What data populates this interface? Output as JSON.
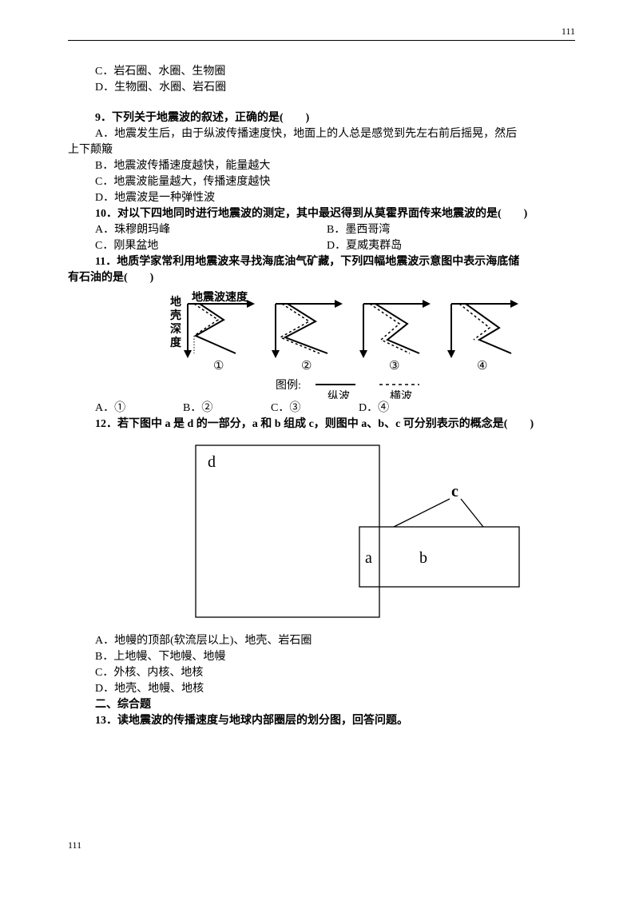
{
  "page_number_top": "111",
  "page_number_bottom": "111",
  "q8": {
    "optC": "C．岩石圈、水圈、生物圈",
    "optD": "D．生物圈、水圈、岩石圈"
  },
  "q9": {
    "stem": "9．下列关于地震波的叙述，正确的是(　　)",
    "optA_1": "A．地震发生后，由于纵波传播速度快，地面上的人总是感觉到先左右前后摇晃，然后",
    "optA_2": "上下颠簸",
    "optB": "B．地震波传播速度越快，能量越大",
    "optC": "C．地震波能量越大，传播速度越快",
    "optD": "D．地震波是一种弹性波"
  },
  "q10": {
    "stem": "10．对以下四地同时进行地震波的测定，其中最迟得到从莫霍界面传来地震波的是(　　)",
    "optA": "A．珠穆朗玛峰",
    "optB": "B．墨西哥湾",
    "optC": "C．刚果盆地",
    "optD": "D．夏威夷群岛"
  },
  "q11": {
    "stem1": "11．地质学家常利用地震波来寻找海底油气矿藏，下列四幅地震波示意图中表示海底储",
    "stem2": "有石油的是(　　)",
    "diagram": {
      "ylabel_chars": [
        "地",
        "壳",
        "深",
        "度"
      ],
      "xlabel": "地震波速度",
      "panels": [
        "①",
        "②",
        "③",
        "④"
      ],
      "legend_label": "图例:",
      "legend_solid": "纵波",
      "legend_dashed": "横波",
      "axis_color": "#000000",
      "solid_width": 2,
      "dashed_width": 1.5,
      "font_size": 14
    },
    "optA": "A．①",
    "optB": "B．②",
    "optC": "C．③",
    "optD": "D．④"
  },
  "q12": {
    "stem": "12．若下图中 a 是 d 的一部分，a 和 b 组成 c，则图中 a、b、c 可分别表示的概念是(　　)",
    "diagram": {
      "label_d": "d",
      "label_a": "a",
      "label_b": "b",
      "label_c": "c",
      "stroke": "#000000",
      "stroke_width": 1.3,
      "font_size": 20
    },
    "optA": "A．地幔的顶部(软流层以上)、地壳、岩石圈",
    "optB": "B．上地幔、下地幔、地幔",
    "optC": "C．外核、内核、地核",
    "optD": "D．地壳、地幔、地核"
  },
  "section2": "二、综合题",
  "q13": {
    "stem": "13．读地震波的传播速度与地球内部圈层的划分图，回答问题。"
  }
}
